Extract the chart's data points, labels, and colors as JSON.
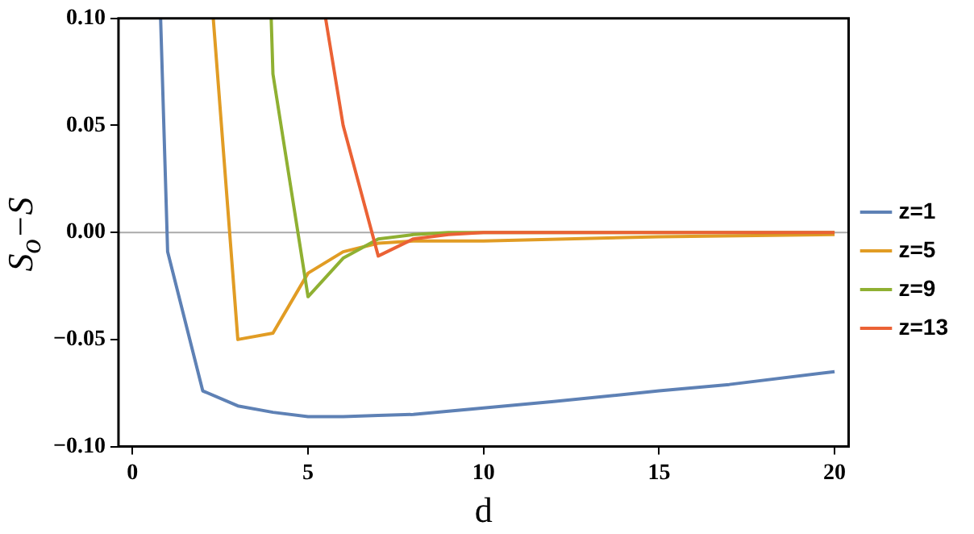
{
  "chart_data": {
    "type": "line",
    "xlabel": "d",
    "ylabel": "S$_{o}$−S",
    "xlim": [
      -0.4,
      20.4
    ],
    "xticks": [
      0,
      5,
      10,
      15,
      20
    ],
    "ylim": [
      -0.1,
      0.1
    ],
    "yticks": [
      {
        "value": -0.1,
        "label": "−0.10"
      },
      {
        "value": -0.05,
        "label": "−0.05"
      },
      {
        "value": 0,
        "label": "0.00"
      },
      {
        "value": 0.05,
        "label": "0.05"
      },
      {
        "value": 0.1,
        "label": "0.10"
      }
    ],
    "grid": false,
    "legend": "right",
    "marker": "none",
    "line_style": "solid",
    "ref_lines": [
      {
        "axis": "y",
        "value": 0,
        "color": "#aaaaaa"
      }
    ],
    "series": [
      {
        "name": "z=1",
        "color": "#5e81b5",
        "x": [
          0.8,
          1,
          2,
          3,
          4,
          5,
          6,
          7,
          8,
          9,
          10,
          12,
          15,
          17,
          20
        ],
        "values": [
          0.1,
          -0.009,
          -0.074,
          -0.081,
          -0.084,
          -0.086,
          -0.086,
          -0.0855,
          -0.085,
          -0.0835,
          -0.082,
          -0.079,
          -0.074,
          -0.071,
          -0.065
        ]
      },
      {
        "name": "z=5",
        "color": "#e19c24",
        "x": [
          2.3,
          3,
          4,
          5,
          6,
          7,
          8,
          10,
          15,
          20
        ],
        "values": [
          0.1,
          -0.05,
          -0.047,
          -0.019,
          -0.009,
          -0.005,
          -0.004,
          -0.004,
          -0.002,
          -0.001
        ]
      },
      {
        "name": "z=9",
        "color": "#8fb032",
        "x": [
          3.95,
          4,
          5,
          6,
          7,
          8,
          9,
          10,
          15,
          20
        ],
        "values": [
          0.1,
          0.074,
          -0.03,
          -0.012,
          -0.003,
          -0.001,
          0,
          0,
          0,
          0
        ]
      },
      {
        "name": "z=13",
        "color": "#eb6235",
        "x": [
          5.5,
          6,
          7,
          8,
          9,
          10,
          15,
          20
        ],
        "values": [
          0.1,
          0.05,
          -0.011,
          -0.003,
          -0.001,
          0,
          0,
          0
        ]
      }
    ]
  }
}
